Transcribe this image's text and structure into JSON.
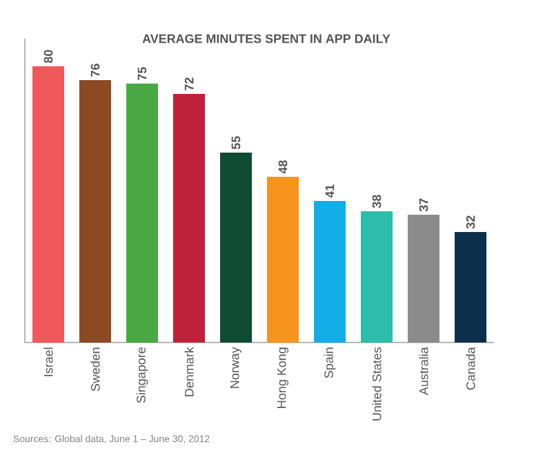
{
  "chart_data": {
    "type": "bar",
    "title": "AVERAGE MINUTES SPENT IN APP DAILY",
    "categories": [
      "Israel",
      "Sweden",
      "Singapore",
      "Denmark",
      "Norway",
      "Hong Kong",
      "Spain",
      "United States",
      "Australia",
      "Canada"
    ],
    "values": [
      80,
      76,
      75,
      72,
      55,
      48,
      41,
      38,
      37,
      32
    ],
    "colors": [
      "#f0585a",
      "#8b4a22",
      "#4aa844",
      "#c0213a",
      "#0f4a32",
      "#f7941d",
      "#13aee8",
      "#2ebcab",
      "#8b8b8b",
      "#0c2f4c"
    ],
    "data_labels": true,
    "annotations": [
      "Sources: Global data, June 1 – June 30, 2012"
    ]
  }
}
